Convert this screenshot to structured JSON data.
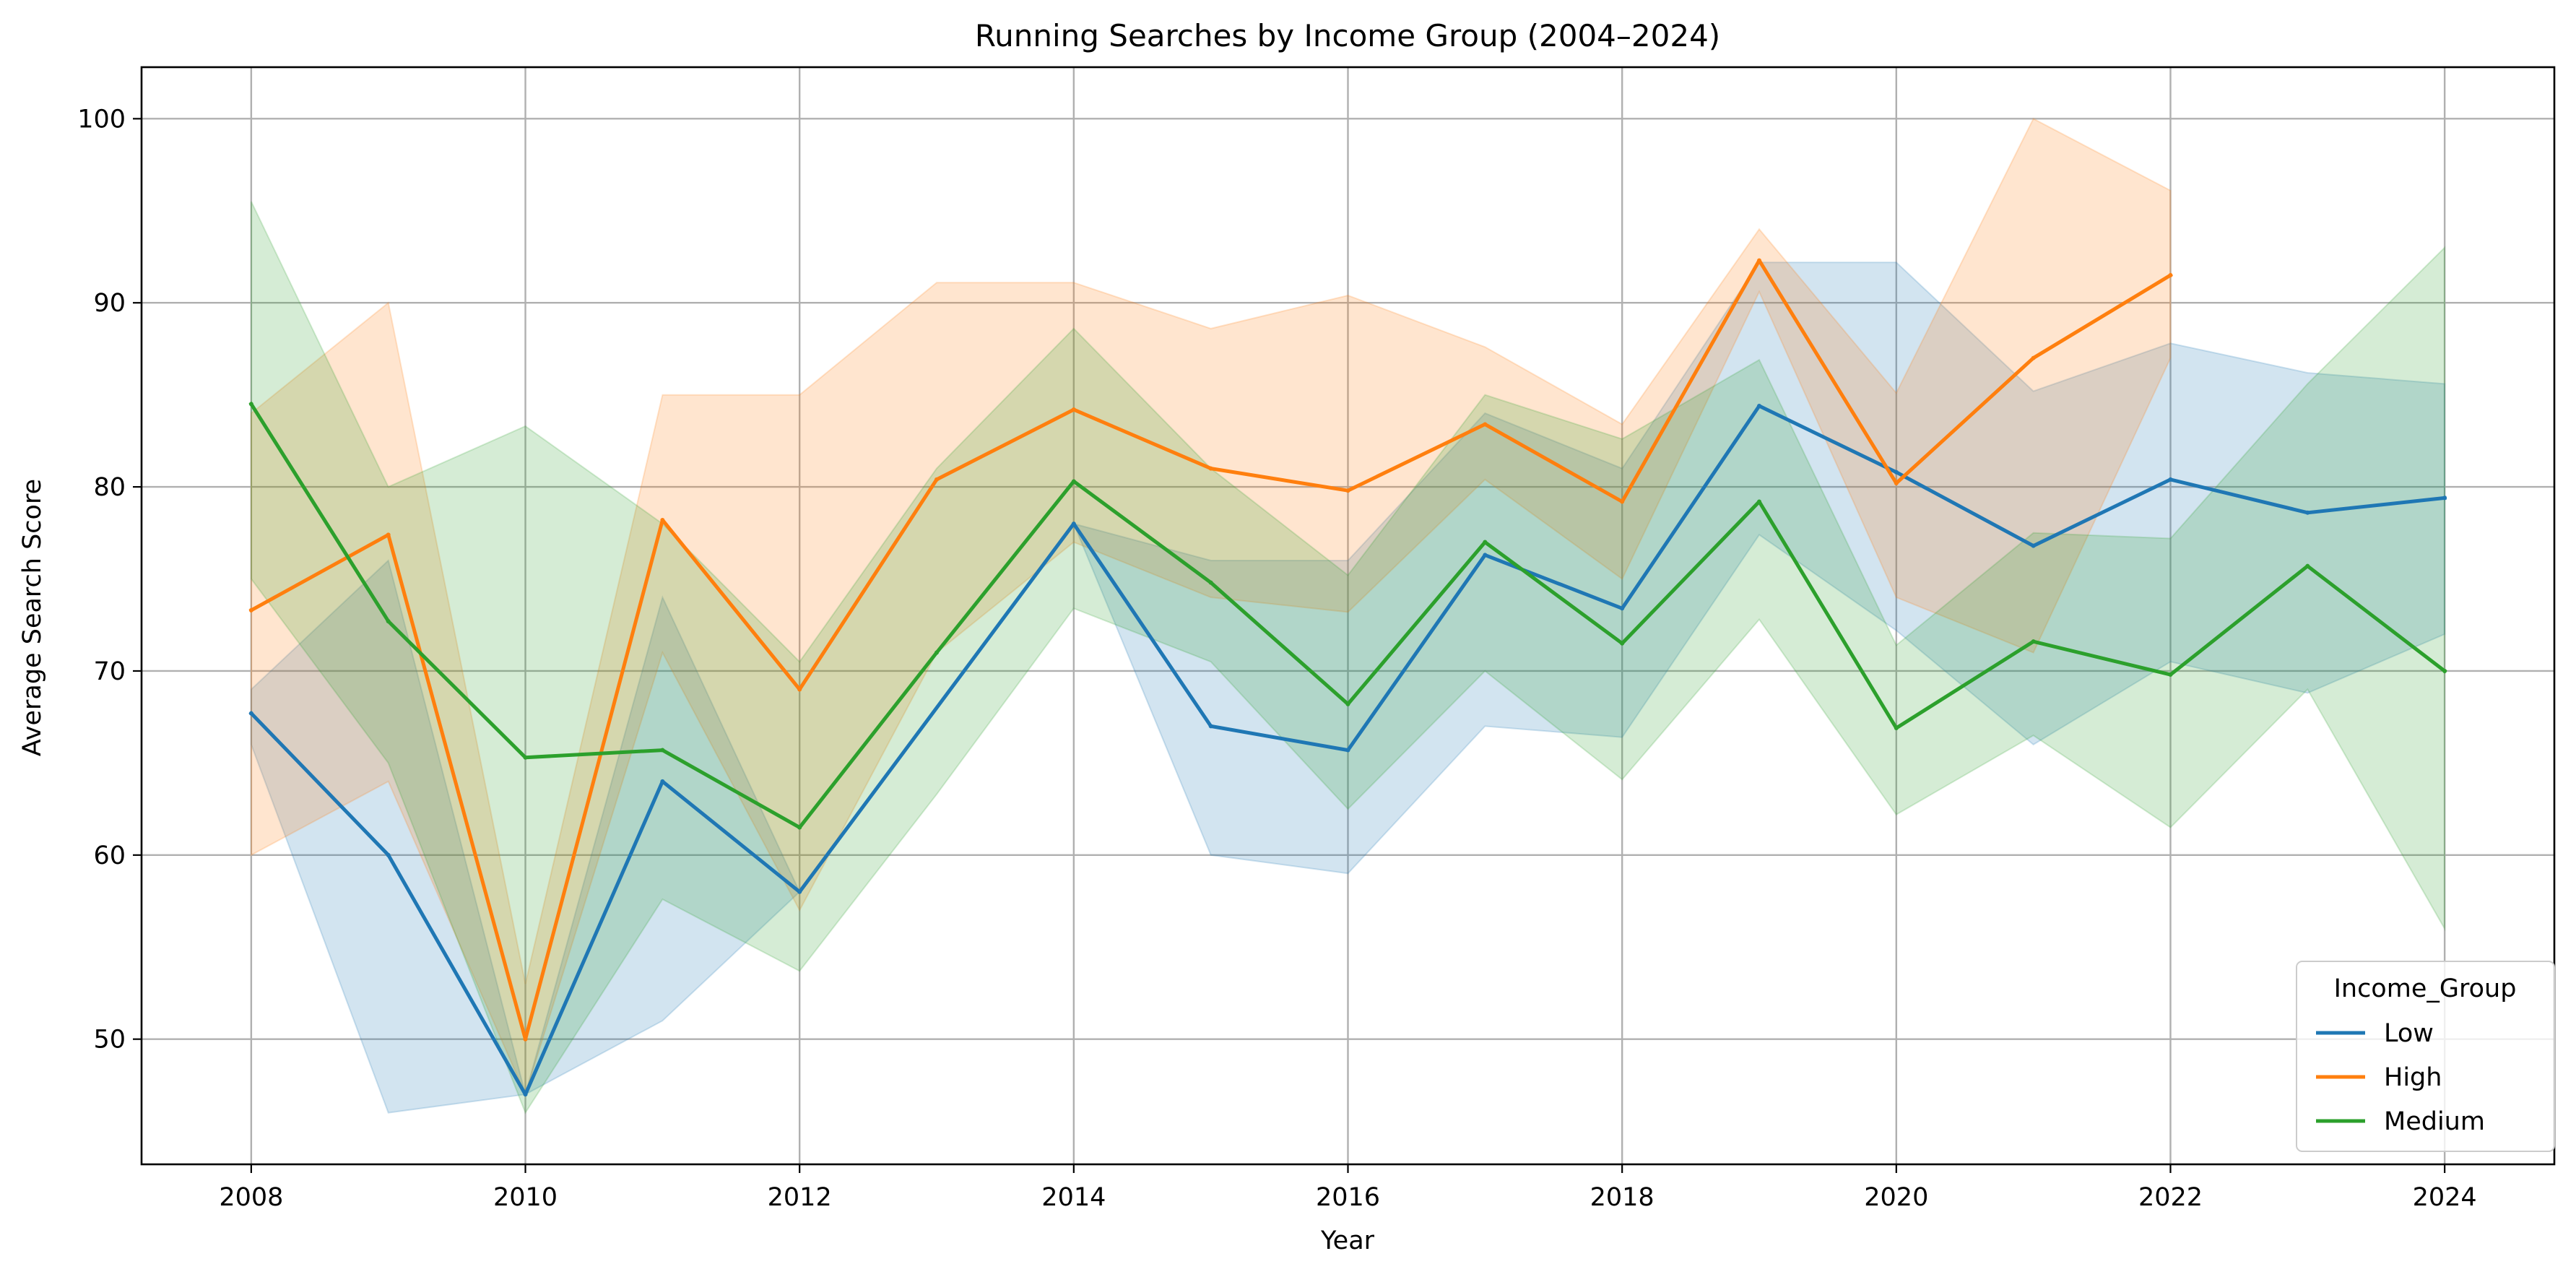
{
  "chart_data": {
    "type": "line",
    "title": "Running Searches by Income Group (2004–2024)",
    "xlabel": "Year",
    "ylabel": "Average Search Score",
    "xlim": [
      2007.2,
      2024.8
    ],
    "ylim": [
      43.2,
      102.8
    ],
    "xticks": [
      "2008",
      "2010",
      "2012",
      "2014",
      "2016",
      "2018",
      "2020",
      "2022",
      "2024"
    ],
    "yticks": [
      "50",
      "60",
      "70",
      "80",
      "90",
      "100"
    ],
    "grid": true,
    "legend": {
      "title": "Income_Group",
      "placement": "lower-right"
    },
    "series": [
      {
        "name": "Low",
        "color": "#1f77b4",
        "x": [
          2008,
          2009,
          2010,
          2011,
          2012,
          2014,
          2015,
          2016,
          2017,
          2018,
          2019,
          2020,
          2021,
          2022,
          2023,
          2024
        ],
        "values": [
          67.7,
          60,
          47,
          64,
          58,
          78,
          67,
          65.7,
          76.3,
          73.4,
          84.4,
          80.8,
          76.8,
          80.4,
          78.6,
          79.4
        ],
        "ci_upper": [
          69,
          76,
          47,
          74,
          58,
          78,
          76,
          76,
          84,
          81,
          92.2,
          92.2,
          85.2,
          87.8,
          86.2,
          85.6
        ],
        "ci_lower": [
          66,
          46,
          47,
          51,
          58,
          78,
          60,
          59,
          67,
          66.4,
          77.4,
          72.2,
          66,
          70.5,
          68.8,
          72
        ]
      },
      {
        "name": "High",
        "color": "#ff7f0e",
        "x": [
          2008,
          2009,
          2010,
          2011,
          2012,
          2013,
          2014,
          2015,
          2016,
          2017,
          2018,
          2019,
          2020,
          2021,
          2022
        ],
        "values": [
          73.3,
          77.4,
          50,
          78.2,
          69,
          80.4,
          84.2,
          81,
          79.8,
          83.4,
          79.2,
          92.3,
          80.2,
          87,
          91.5
        ],
        "ci_upper": [
          84,
          90,
          53,
          85,
          85,
          91.1,
          91.1,
          88.6,
          90.4,
          87.6,
          83.4,
          94,
          85.1,
          100,
          96.1
        ],
        "ci_lower": [
          60,
          64,
          47,
          71,
          57,
          71,
          77,
          74,
          73.2,
          80.4,
          75,
          90.6,
          74,
          71,
          87
        ]
      },
      {
        "name": "Medium",
        "color": "#2ca02c",
        "x": [
          2008,
          2009,
          2010,
          2011,
          2012,
          2013,
          2014,
          2015,
          2016,
          2017,
          2018,
          2019,
          2020,
          2021,
          2022,
          2023,
          2024
        ],
        "values": [
          84.5,
          72.7,
          65.3,
          65.7,
          61.5,
          71,
          80.3,
          74.8,
          68.2,
          77,
          71.5,
          79.2,
          66.9,
          71.6,
          69.8,
          75.7,
          70
        ],
        "ci_upper": [
          95.5,
          80,
          83.3,
          78,
          70.5,
          81,
          88.6,
          81,
          75.2,
          85,
          82.6,
          86.9,
          71.4,
          77.5,
          77.2,
          85.6,
          93
        ],
        "ci_lower": [
          75,
          65,
          46,
          57.6,
          53.7,
          63.3,
          73.4,
          70.5,
          62.5,
          70,
          64.1,
          72.8,
          62.2,
          66.5,
          61.5,
          69,
          56
        ]
      }
    ]
  }
}
